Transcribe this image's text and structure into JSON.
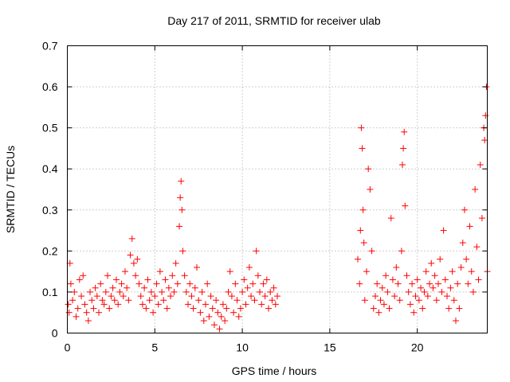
{
  "chart_data": {
    "type": "scatter",
    "title": "Day 217 of 2011, SRMTID for receiver ulab",
    "xlabel": "GPS time / hours",
    "ylabel": "SRMTID / TECUs",
    "xlim": [
      0,
      24
    ],
    "ylim": [
      0,
      0.7
    ],
    "xticks": [
      0,
      5,
      10,
      15,
      20
    ],
    "xtick_labels": [
      "0",
      "5",
      "10",
      "15",
      "20"
    ],
    "yticks": [
      0,
      0.1,
      0.2,
      0.3,
      0.4,
      0.5,
      0.6,
      0.7
    ],
    "ytick_labels": [
      "0",
      "0.1",
      "0.2",
      "0.3",
      "0.4",
      "0.5",
      "0.6",
      "0.7"
    ],
    "grid": true,
    "legend": "none",
    "marker": "+",
    "colors": {
      "points": "#ff0000",
      "grid": "#a0a0a0",
      "axes": "#000000"
    },
    "series": [
      {
        "name": "SRMTID",
        "points": [
          [
            0.05,
            0.07
          ],
          [
            0.1,
            0.05
          ],
          [
            0.15,
            0.17
          ],
          [
            0.2,
            0.12
          ],
          [
            0.3,
            0.08
          ],
          [
            0.4,
            0.1
          ],
          [
            0.5,
            0.04
          ],
          [
            0.6,
            0.06
          ],
          [
            0.7,
            0.13
          ],
          [
            0.8,
            0.09
          ],
          [
            0.9,
            0.14
          ],
          [
            1.0,
            0.07
          ],
          [
            1.1,
            0.05
          ],
          [
            1.2,
            0.03
          ],
          [
            1.3,
            0.1
          ],
          [
            1.4,
            0.08
          ],
          [
            1.5,
            0.06
          ],
          [
            1.6,
            0.11
          ],
          [
            1.7,
            0.09
          ],
          [
            1.8,
            0.05
          ],
          [
            1.9,
            0.12
          ],
          [
            2.0,
            0.08
          ],
          [
            2.1,
            0.07
          ],
          [
            2.2,
            0.1
          ],
          [
            2.3,
            0.14
          ],
          [
            2.4,
            0.06
          ],
          [
            2.5,
            0.09
          ],
          [
            2.6,
            0.11
          ],
          [
            2.7,
            0.08
          ],
          [
            2.8,
            0.13
          ],
          [
            2.9,
            0.07
          ],
          [
            3.0,
            0.1
          ],
          [
            3.1,
            0.12
          ],
          [
            3.2,
            0.09
          ],
          [
            3.3,
            0.15
          ],
          [
            3.4,
            0.11
          ],
          [
            3.5,
            0.08
          ],
          [
            3.6,
            0.19
          ],
          [
            3.7,
            0.23
          ],
          [
            3.8,
            0.17
          ],
          [
            3.9,
            0.14
          ],
          [
            4.0,
            0.18
          ],
          [
            4.1,
            0.12
          ],
          [
            4.2,
            0.09
          ],
          [
            4.3,
            0.07
          ],
          [
            4.4,
            0.11
          ],
          [
            4.5,
            0.06
          ],
          [
            4.6,
            0.13
          ],
          [
            4.7,
            0.08
          ],
          [
            4.8,
            0.1
          ],
          [
            4.9,
            0.05
          ],
          [
            5.0,
            0.09
          ],
          [
            5.1,
            0.12
          ],
          [
            5.2,
            0.07
          ],
          [
            5.3,
            0.15
          ],
          [
            5.4,
            0.1
          ],
          [
            5.5,
            0.08
          ],
          [
            5.6,
            0.13
          ],
          [
            5.7,
            0.06
          ],
          [
            5.8,
            0.11
          ],
          [
            5.9,
            0.09
          ],
          [
            6.0,
            0.14
          ],
          [
            6.1,
            0.1
          ],
          [
            6.2,
            0.17
          ],
          [
            6.3,
            0.12
          ],
          [
            6.4,
            0.26
          ],
          [
            6.45,
            0.33
          ],
          [
            6.5,
            0.37
          ],
          [
            6.55,
            0.3
          ],
          [
            6.6,
            0.2
          ],
          [
            6.7,
            0.14
          ],
          [
            6.8,
            0.1
          ],
          [
            6.9,
            0.07
          ],
          [
            7.0,
            0.12
          ],
          [
            7.1,
            0.09
          ],
          [
            7.2,
            0.06
          ],
          [
            7.3,
            0.11
          ],
          [
            7.4,
            0.16
          ],
          [
            7.5,
            0.08
          ],
          [
            7.6,
            0.05
          ],
          [
            7.7,
            0.1
          ],
          [
            7.8,
            0.03
          ],
          [
            7.9,
            0.07
          ],
          [
            8.0,
            0.12
          ],
          [
            8.1,
            0.04
          ],
          [
            8.2,
            0.09
          ],
          [
            8.3,
            0.06
          ],
          [
            8.4,
            0.02
          ],
          [
            8.5,
            0.08
          ],
          [
            8.6,
            0.05
          ],
          [
            8.7,
            0.01
          ],
          [
            8.8,
            0.04
          ],
          [
            8.9,
            0.07
          ],
          [
            9.0,
            0.03
          ],
          [
            9.1,
            0.06
          ],
          [
            9.2,
            0.1
          ],
          [
            9.3,
            0.15
          ],
          [
            9.4,
            0.09
          ],
          [
            9.5,
            0.05
          ],
          [
            9.6,
            0.12
          ],
          [
            9.7,
            0.08
          ],
          [
            9.8,
            0.04
          ],
          [
            9.9,
            0.06
          ],
          [
            10.0,
            0.1
          ],
          [
            10.1,
            0.13
          ],
          [
            10.2,
            0.07
          ],
          [
            10.3,
            0.11
          ],
          [
            10.4,
            0.16
          ],
          [
            10.5,
            0.09
          ],
          [
            10.6,
            0.12
          ],
          [
            10.7,
            0.08
          ],
          [
            10.8,
            0.2
          ],
          [
            10.9,
            0.14
          ],
          [
            11.0,
            0.1
          ],
          [
            11.1,
            0.07
          ],
          [
            11.2,
            0.12
          ],
          [
            11.3,
            0.09
          ],
          [
            11.4,
            0.13
          ],
          [
            11.5,
            0.06
          ],
          [
            11.6,
            0.1
          ],
          [
            11.7,
            0.08
          ],
          [
            11.8,
            0.11
          ],
          [
            11.9,
            0.07
          ],
          [
            12.0,
            0.09
          ],
          [
            16.6,
            0.18
          ],
          [
            16.7,
            0.12
          ],
          [
            16.75,
            0.25
          ],
          [
            16.8,
            0.5
          ],
          [
            16.85,
            0.45
          ],
          [
            16.9,
            0.3
          ],
          [
            16.95,
            0.22
          ],
          [
            17.0,
            0.08
          ],
          [
            17.1,
            0.15
          ],
          [
            17.2,
            0.4
          ],
          [
            17.3,
            0.35
          ],
          [
            17.4,
            0.2
          ],
          [
            17.5,
            0.06
          ],
          [
            17.6,
            0.09
          ],
          [
            17.7,
            0.12
          ],
          [
            17.8,
            0.05
          ],
          [
            17.9,
            0.08
          ],
          [
            18.0,
            0.11
          ],
          [
            18.1,
            0.07
          ],
          [
            18.2,
            0.14
          ],
          [
            18.3,
            0.1
          ],
          [
            18.4,
            0.06
          ],
          [
            18.5,
            0.28
          ],
          [
            18.6,
            0.13
          ],
          [
            18.7,
            0.09
          ],
          [
            18.8,
            0.16
          ],
          [
            18.9,
            0.12
          ],
          [
            19.0,
            0.08
          ],
          [
            19.1,
            0.2
          ],
          [
            19.15,
            0.41
          ],
          [
            19.2,
            0.45
          ],
          [
            19.25,
            0.49
          ],
          [
            19.3,
            0.31
          ],
          [
            19.4,
            0.14
          ],
          [
            19.5,
            0.1
          ],
          [
            19.6,
            0.07
          ],
          [
            19.7,
            0.12
          ],
          [
            19.8,
            0.05
          ],
          [
            19.9,
            0.09
          ],
          [
            20.0,
            0.13
          ],
          [
            20.1,
            0.08
          ],
          [
            20.2,
            0.11
          ],
          [
            20.3,
            0.06
          ],
          [
            20.4,
            0.1
          ],
          [
            20.5,
            0.15
          ],
          [
            20.6,
            0.09
          ],
          [
            20.7,
            0.12
          ],
          [
            20.8,
            0.17
          ],
          [
            20.9,
            0.11
          ],
          [
            21.0,
            0.14
          ],
          [
            21.1,
            0.08
          ],
          [
            21.2,
            0.12
          ],
          [
            21.3,
            0.18
          ],
          [
            21.4,
            0.1
          ],
          [
            21.5,
            0.25
          ],
          [
            21.6,
            0.13
          ],
          [
            21.7,
            0.09
          ],
          [
            21.8,
            0.06
          ],
          [
            21.9,
            0.11
          ],
          [
            22.0,
            0.15
          ],
          [
            22.1,
            0.08
          ],
          [
            22.2,
            0.03
          ],
          [
            22.3,
            0.12
          ],
          [
            22.4,
            0.06
          ],
          [
            22.5,
            0.16
          ],
          [
            22.6,
            0.22
          ],
          [
            22.7,
            0.3
          ],
          [
            22.8,
            0.18
          ],
          [
            22.9,
            0.12
          ],
          [
            23.0,
            0.26
          ],
          [
            23.1,
            0.15
          ],
          [
            23.2,
            0.1
          ],
          [
            23.3,
            0.35
          ],
          [
            23.4,
            0.21
          ],
          [
            23.5,
            0.13
          ],
          [
            23.6,
            0.41
          ],
          [
            23.7,
            0.28
          ],
          [
            23.8,
            0.5
          ],
          [
            23.85,
            0.47
          ],
          [
            23.9,
            0.53
          ],
          [
            23.95,
            0.6
          ],
          [
            24.0,
            0.15
          ]
        ]
      }
    ]
  }
}
